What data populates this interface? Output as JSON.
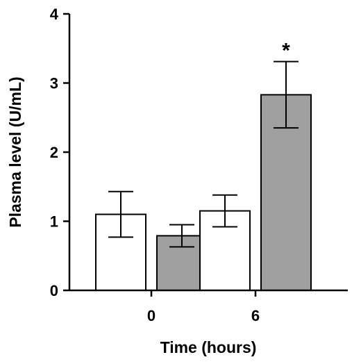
{
  "chart_data": {
    "type": "bar",
    "categories": [
      "0",
      "6"
    ],
    "series": [
      {
        "values": [
          1.1,
          1.15
        ],
        "errors": [
          0.33,
          0.23
        ],
        "color": "#ffffff"
      },
      {
        "values": [
          0.79,
          2.83
        ],
        "errors": [
          0.16,
          0.48
        ],
        "color": "#a0a0a0"
      }
    ],
    "xlabel": "Time (hours)",
    "ylabel": "Plasma level (U/mL)",
    "ylim": [
      0,
      4
    ],
    "yticks": [
      "0",
      "1",
      "2",
      "3",
      "4"
    ],
    "grid": false,
    "annotations": [
      {
        "text": "*",
        "category": "6",
        "series": 1
      }
    ]
  }
}
